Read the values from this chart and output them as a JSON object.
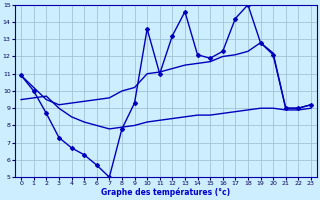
{
  "xlabel": "Graphe des températures (°c)",
  "x_ticks": [
    0,
    1,
    2,
    3,
    4,
    5,
    6,
    7,
    8,
    9,
    10,
    11,
    12,
    13,
    14,
    15,
    16,
    17,
    18,
    19,
    20,
    21,
    22,
    23
  ],
  "ylim": [
    5,
    15
  ],
  "xlim": [
    -0.5,
    23.5
  ],
  "y_ticks": [
    5,
    6,
    7,
    8,
    9,
    10,
    11,
    12,
    13,
    14,
    15
  ],
  "main_line": {
    "x": [
      0,
      1,
      2,
      3,
      4,
      5,
      6,
      7,
      8,
      9,
      10,
      11,
      12,
      13,
      14,
      15,
      16,
      17,
      18,
      19,
      20,
      21,
      22,
      23
    ],
    "y": [
      10.9,
      10.0,
      8.7,
      7.3,
      6.7,
      6.3,
      5.7,
      5.0,
      7.8,
      9.3,
      13.6,
      11.0,
      13.2,
      14.6,
      12.1,
      11.9,
      12.3,
      14.2,
      15.0,
      12.8,
      12.1,
      9.0,
      9.0,
      9.2
    ],
    "color": "#0000bb",
    "linewidth": 1.0,
    "marker": "D",
    "markersize": 2.0
  },
  "upper_line": {
    "x": [
      0,
      1,
      2,
      3,
      4,
      5,
      6,
      7,
      8,
      9,
      10,
      11,
      12,
      13,
      14,
      15,
      16,
      17,
      18,
      19,
      20,
      21,
      22,
      23
    ],
    "y": [
      10.9,
      10.2,
      9.5,
      9.2,
      9.3,
      9.4,
      9.5,
      9.6,
      10.0,
      10.2,
      11.0,
      11.1,
      11.3,
      11.5,
      11.6,
      11.7,
      12.0,
      12.1,
      12.3,
      12.8,
      12.2,
      9.0,
      9.0,
      9.2
    ],
    "color": "#0000bb",
    "linewidth": 1.0
  },
  "lower_line": {
    "x": [
      0,
      1,
      2,
      3,
      4,
      5,
      6,
      7,
      8,
      9,
      10,
      11,
      12,
      13,
      14,
      15,
      16,
      17,
      18,
      19,
      20,
      21,
      22,
      23
    ],
    "y": [
      9.5,
      9.6,
      9.7,
      9.0,
      8.5,
      8.2,
      8.0,
      7.8,
      7.9,
      8.0,
      8.2,
      8.3,
      8.4,
      8.5,
      8.6,
      8.6,
      8.7,
      8.8,
      8.9,
      9.0,
      9.0,
      8.9,
      8.9,
      9.0
    ],
    "color": "#0000bb",
    "linewidth": 1.0
  },
  "background_color": "#cceeff",
  "grid_color": "#99bbcc",
  "tick_color": "#000055",
  "label_color": "#0000cc"
}
